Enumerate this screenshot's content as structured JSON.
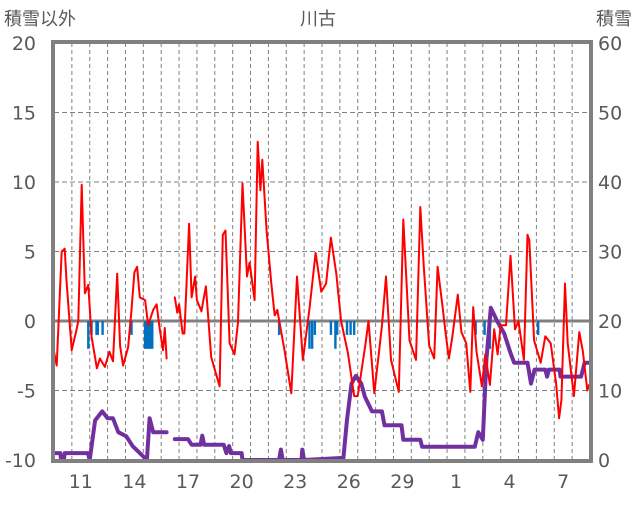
{
  "chart_data": {
    "type": "line",
    "title": "川古",
    "ylabel_left": "積雪以外",
    "ylabel_right": "積雪",
    "ylim_left": [
      -10,
      20
    ],
    "ylim_right": [
      0,
      60
    ],
    "yticks_left": [
      "20",
      "15",
      "10",
      "5",
      "0",
      "-5",
      "-10"
    ],
    "yticks_right": [
      "60",
      "50",
      "40",
      "30",
      "20",
      "10",
      "0"
    ],
    "x_unit": "days since start of day 10",
    "xlim": [
      0,
      30
    ],
    "xticks": [
      {
        "day": 1.5,
        "label": "11"
      },
      {
        "day": 4.5,
        "label": "14"
      },
      {
        "day": 7.5,
        "label": "17"
      },
      {
        "day": 10.5,
        "label": "20"
      },
      {
        "day": 13.5,
        "label": "23"
      },
      {
        "day": 16.5,
        "label": "26"
      },
      {
        "day": 19.5,
        "label": "29"
      },
      {
        "day": 22.5,
        "label": "1"
      },
      {
        "day": 25.5,
        "label": "4"
      },
      {
        "day": 28.5,
        "label": "7"
      }
    ],
    "grid": true,
    "colors": {
      "temperature": "#ff0000",
      "precipitation": "#0070c0",
      "snow_depth": "#7030a0",
      "axis": "#808080"
    },
    "series": [
      {
        "name": "temperature",
        "axis": "left",
        "points": [
          [
            0,
            -2.2
          ],
          [
            0.15,
            -3.2
          ],
          [
            0.43,
            5.0
          ],
          [
            0.6,
            5.2
          ],
          [
            0.7,
            2.9
          ],
          [
            0.99,
            -2.1
          ],
          [
            1.23,
            -0.8
          ],
          [
            1.36,
            0
          ],
          [
            1.55,
            9.8
          ],
          [
            1.73,
            2.0
          ],
          [
            1.92,
            2.6
          ],
          [
            2.1,
            -1.1
          ],
          [
            2.4,
            -3.4
          ],
          [
            2.57,
            -2.7
          ],
          [
            2.85,
            -3.3
          ],
          [
            3.1,
            -2.2
          ],
          [
            3.3,
            -2.9
          ],
          [
            3.54,
            3.4
          ],
          [
            3.7,
            -1.8
          ],
          [
            3.87,
            -3.2
          ],
          [
            4.15,
            -1.9
          ],
          [
            4.34,
            0.8
          ],
          [
            4.5,
            3.5
          ],
          [
            4.65,
            3.9
          ],
          [
            4.8,
            1.7
          ],
          [
            5.1,
            1.5
          ],
          [
            5.27,
            -0.3
          ],
          [
            5.55,
            0.8
          ],
          [
            5.74,
            1.2
          ],
          [
            5.9,
            -0.4
          ],
          [
            6.1,
            -2.1
          ],
          [
            6.2,
            -0.5
          ],
          [
            6.3,
            -2.7
          ],
          null,
          [
            6.76,
            1.7
          ],
          [
            6.9,
            0.6
          ],
          [
            7.0,
            1.2
          ],
          [
            7.2,
            -0.9
          ],
          [
            7.3,
            -0.9
          ],
          [
            7.56,
            7.0
          ],
          [
            7.7,
            1.7
          ],
          [
            7.9,
            3.2
          ],
          [
            8.0,
            1.5
          ],
          [
            8.25,
            0.7
          ],
          [
            8.5,
            2.5
          ],
          [
            8.8,
            -2.6
          ],
          [
            9.0,
            -3.5
          ],
          [
            9.27,
            -4.7
          ],
          [
            9.45,
            6.2
          ],
          [
            9.6,
            6.5
          ],
          [
            9.83,
            -1.6
          ],
          [
            10.1,
            -2.4
          ],
          [
            10.3,
            -0.1
          ],
          [
            10.55,
            9.9
          ],
          [
            10.8,
            3.2
          ],
          [
            10.95,
            4.2
          ],
          [
            11.23,
            1.5
          ],
          [
            11.4,
            12.9
          ],
          [
            11.55,
            9.4
          ],
          [
            11.66,
            11.6
          ],
          [
            11.9,
            6.5
          ],
          [
            12.16,
            2.7
          ],
          [
            12.35,
            0.4
          ],
          [
            12.5,
            0.8
          ],
          [
            12.9,
            -2.1
          ],
          [
            13.28,
            -5.2
          ],
          [
            13.6,
            3.2
          ],
          [
            13.93,
            -2.8
          ],
          [
            14.3,
            0.9
          ],
          [
            14.64,
            4.9
          ],
          [
            14.96,
            2.1
          ],
          [
            15.23,
            2.7
          ],
          [
            15.5,
            6.0
          ],
          [
            15.8,
            3.4
          ],
          [
            16.07,
            0
          ],
          [
            16.45,
            -2.3
          ],
          [
            16.8,
            -5.4
          ],
          [
            17.0,
            -5.4
          ],
          [
            17.43,
            -1.7
          ],
          [
            17.6,
            0
          ],
          [
            17.93,
            -5.2
          ],
          [
            18.36,
            -0.3
          ],
          [
            18.58,
            3.2
          ],
          [
            18.86,
            -2.8
          ],
          [
            19.3,
            -5.1
          ],
          [
            19.55,
            7.3
          ],
          [
            19.9,
            -1.4
          ],
          [
            20.26,
            -2.8
          ],
          [
            20.5,
            8.2
          ],
          [
            20.7,
            3.9
          ],
          [
            21.0,
            -1.8
          ],
          [
            21.28,
            -2.7
          ],
          [
            21.47,
            3.9
          ],
          [
            21.75,
            1.0
          ],
          [
            21.94,
            -1.1
          ],
          [
            22.1,
            -2.7
          ],
          [
            22.3,
            -1.1
          ],
          [
            22.6,
            1.9
          ],
          [
            22.8,
            -0.8
          ],
          [
            23.07,
            -1.6
          ],
          [
            23.3,
            -5.1
          ],
          [
            23.46,
            1.0
          ],
          [
            23.65,
            -2.2
          ],
          [
            23.95,
            -4.7
          ],
          [
            24.14,
            -2.4
          ],
          [
            24.4,
            -4.6
          ],
          [
            24.64,
            -0.6
          ],
          [
            24.83,
            -2.4
          ],
          [
            25.0,
            -0.3
          ],
          [
            25.3,
            -0.3
          ],
          [
            25.55,
            4.7
          ],
          [
            25.8,
            -0.6
          ],
          [
            26.0,
            0
          ],
          [
            26.3,
            -2.8
          ],
          [
            26.5,
            6.2
          ],
          [
            26.6,
            5.8
          ],
          [
            26.87,
            -1.4
          ],
          [
            27.24,
            -3.0
          ],
          [
            27.5,
            -1.1
          ],
          [
            27.8,
            -1.6
          ],
          [
            28.1,
            -4.5
          ],
          [
            28.27,
            -7.0
          ],
          [
            28.4,
            -5.7
          ],
          [
            28.6,
            2.7
          ],
          [
            28.75,
            -1.6
          ],
          [
            29.1,
            -5.4
          ],
          [
            29.4,
            -0.8
          ],
          [
            29.6,
            -2.2
          ],
          [
            29.85,
            -5.0
          ],
          [
            29.95,
            -4.6
          ]
        ]
      },
      {
        "name": "precipitation",
        "axis": "left",
        "direction": "down-from-zero",
        "bars": [
          [
            1.92,
            2
          ],
          [
            2.1,
            1
          ],
          [
            2.38,
            1
          ],
          [
            2.45,
            1
          ],
          [
            2.72,
            1
          ],
          [
            4.34,
            1
          ],
          [
            5.1,
            2
          ],
          [
            5.2,
            2
          ],
          [
            5.3,
            2
          ],
          [
            5.4,
            2
          ],
          [
            5.5,
            2
          ],
          [
            12.6,
            1
          ],
          [
            14.3,
            2
          ],
          [
            14.45,
            2
          ],
          [
            14.6,
            1
          ],
          [
            15.5,
            1
          ],
          [
            15.75,
            2
          ],
          [
            15.85,
            1
          ],
          [
            16.4,
            1
          ],
          [
            16.6,
            1
          ],
          [
            16.8,
            1
          ],
          [
            23.6,
            1
          ],
          [
            24.1,
            1
          ],
          [
            24.4,
            2
          ],
          [
            27.1,
            1
          ]
        ]
      },
      {
        "name": "snow_depth",
        "axis": "right",
        "points": [
          [
            0,
            1
          ],
          [
            0.35,
            1
          ],
          [
            0.4,
            0
          ],
          [
            0.55,
            0
          ],
          [
            0.6,
            1
          ],
          [
            1.9,
            1
          ],
          [
            2.0,
            0
          ],
          [
            2.3,
            5.7
          ],
          [
            2.7,
            7
          ],
          [
            3.0,
            6
          ],
          [
            3.3,
            6
          ],
          [
            3.6,
            4
          ],
          [
            4.05,
            3.4
          ],
          [
            4.4,
            2
          ],
          [
            4.8,
            1
          ],
          [
            5.0,
            0.5
          ],
          [
            5.2,
            0
          ],
          [
            5.35,
            6
          ],
          [
            5.55,
            4
          ],
          [
            6.3,
            4
          ],
          null,
          [
            6.76,
            3
          ],
          [
            7.5,
            3
          ],
          [
            7.7,
            2.2
          ],
          [
            8.2,
            2.2
          ],
          [
            8.3,
            3.5
          ],
          [
            8.4,
            2.2
          ],
          [
            9.5,
            2.2
          ],
          [
            9.65,
            1
          ],
          [
            9.8,
            2
          ],
          [
            9.9,
            1
          ],
          [
            10.5,
            1
          ],
          [
            10.55,
            0
          ],
          [
            12.6,
            0
          ],
          [
            12.7,
            1.5
          ],
          [
            12.8,
            0
          ],
          [
            13.85,
            0
          ],
          [
            13.9,
            1.5
          ],
          [
            14.0,
            0
          ],
          [
            16.2,
            0.3
          ],
          [
            16.4,
            5.8
          ],
          [
            16.65,
            11
          ],
          [
            16.9,
            12.1
          ],
          [
            17.2,
            11
          ],
          [
            17.4,
            9.1
          ],
          [
            17.8,
            7
          ],
          [
            18.35,
            7
          ],
          [
            18.5,
            5
          ],
          [
            19.45,
            5
          ],
          [
            19.55,
            2.9
          ],
          [
            20.5,
            2.9
          ],
          [
            20.6,
            1.9
          ],
          [
            23.55,
            1.9
          ],
          [
            23.75,
            4
          ],
          [
            24.0,
            2.9
          ],
          [
            24.2,
            14.4
          ],
          [
            24.45,
            21.9
          ],
          [
            24.8,
            20
          ],
          [
            25.2,
            18.2
          ],
          [
            25.55,
            15.4
          ],
          [
            25.75,
            14
          ],
          [
            26.5,
            14
          ],
          [
            26.7,
            11
          ],
          [
            26.9,
            13
          ],
          [
            27.5,
            13
          ],
          [
            27.6,
            12
          ],
          [
            27.7,
            13
          ],
          [
            28.3,
            13
          ],
          [
            28.35,
            12
          ],
          [
            29.5,
            12
          ],
          [
            29.7,
            14
          ],
          [
            30,
            14
          ]
        ]
      }
    ]
  }
}
